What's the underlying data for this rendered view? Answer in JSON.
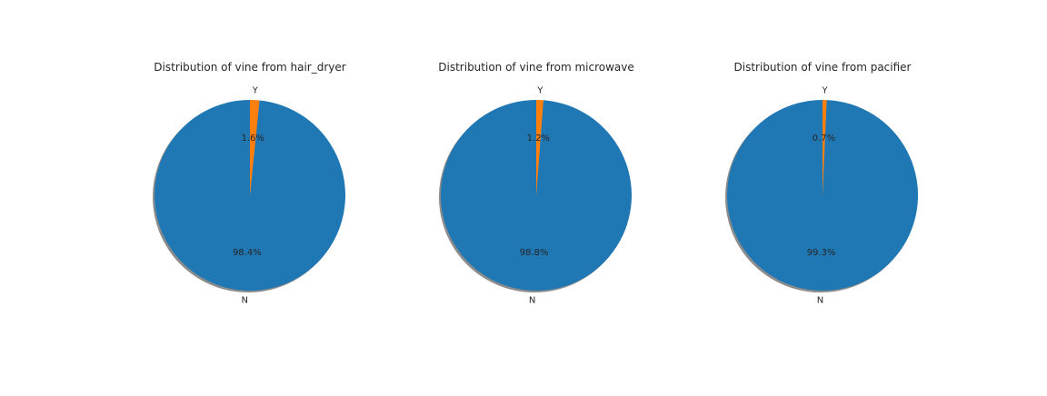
{
  "chart_data": [
    {
      "type": "pie",
      "title": "Distribution of vine from hair_dryer",
      "labels": [
        "N",
        "Y"
      ],
      "values": [
        98.4,
        1.6
      ],
      "pct_labels": [
        "98.4%",
        "1.6%"
      ],
      "colors": [
        "#1f77b4",
        "#ff7f0e"
      ],
      "shadow": true
    },
    {
      "type": "pie",
      "title": "Distribution of vine from microwave",
      "labels": [
        "N",
        "Y"
      ],
      "values": [
        98.8,
        1.2
      ],
      "pct_labels": [
        "98.8%",
        "1.2%"
      ],
      "colors": [
        "#1f77b4",
        "#ff7f0e"
      ],
      "shadow": true
    },
    {
      "type": "pie",
      "title": "Distribution of vine from pacifier",
      "labels": [
        "N",
        "Y"
      ],
      "values": [
        99.3,
        0.7
      ],
      "pct_labels": [
        "99.3%",
        "0.7%"
      ],
      "colors": [
        "#1f77b4",
        "#ff7f0e"
      ],
      "shadow": true
    }
  ]
}
